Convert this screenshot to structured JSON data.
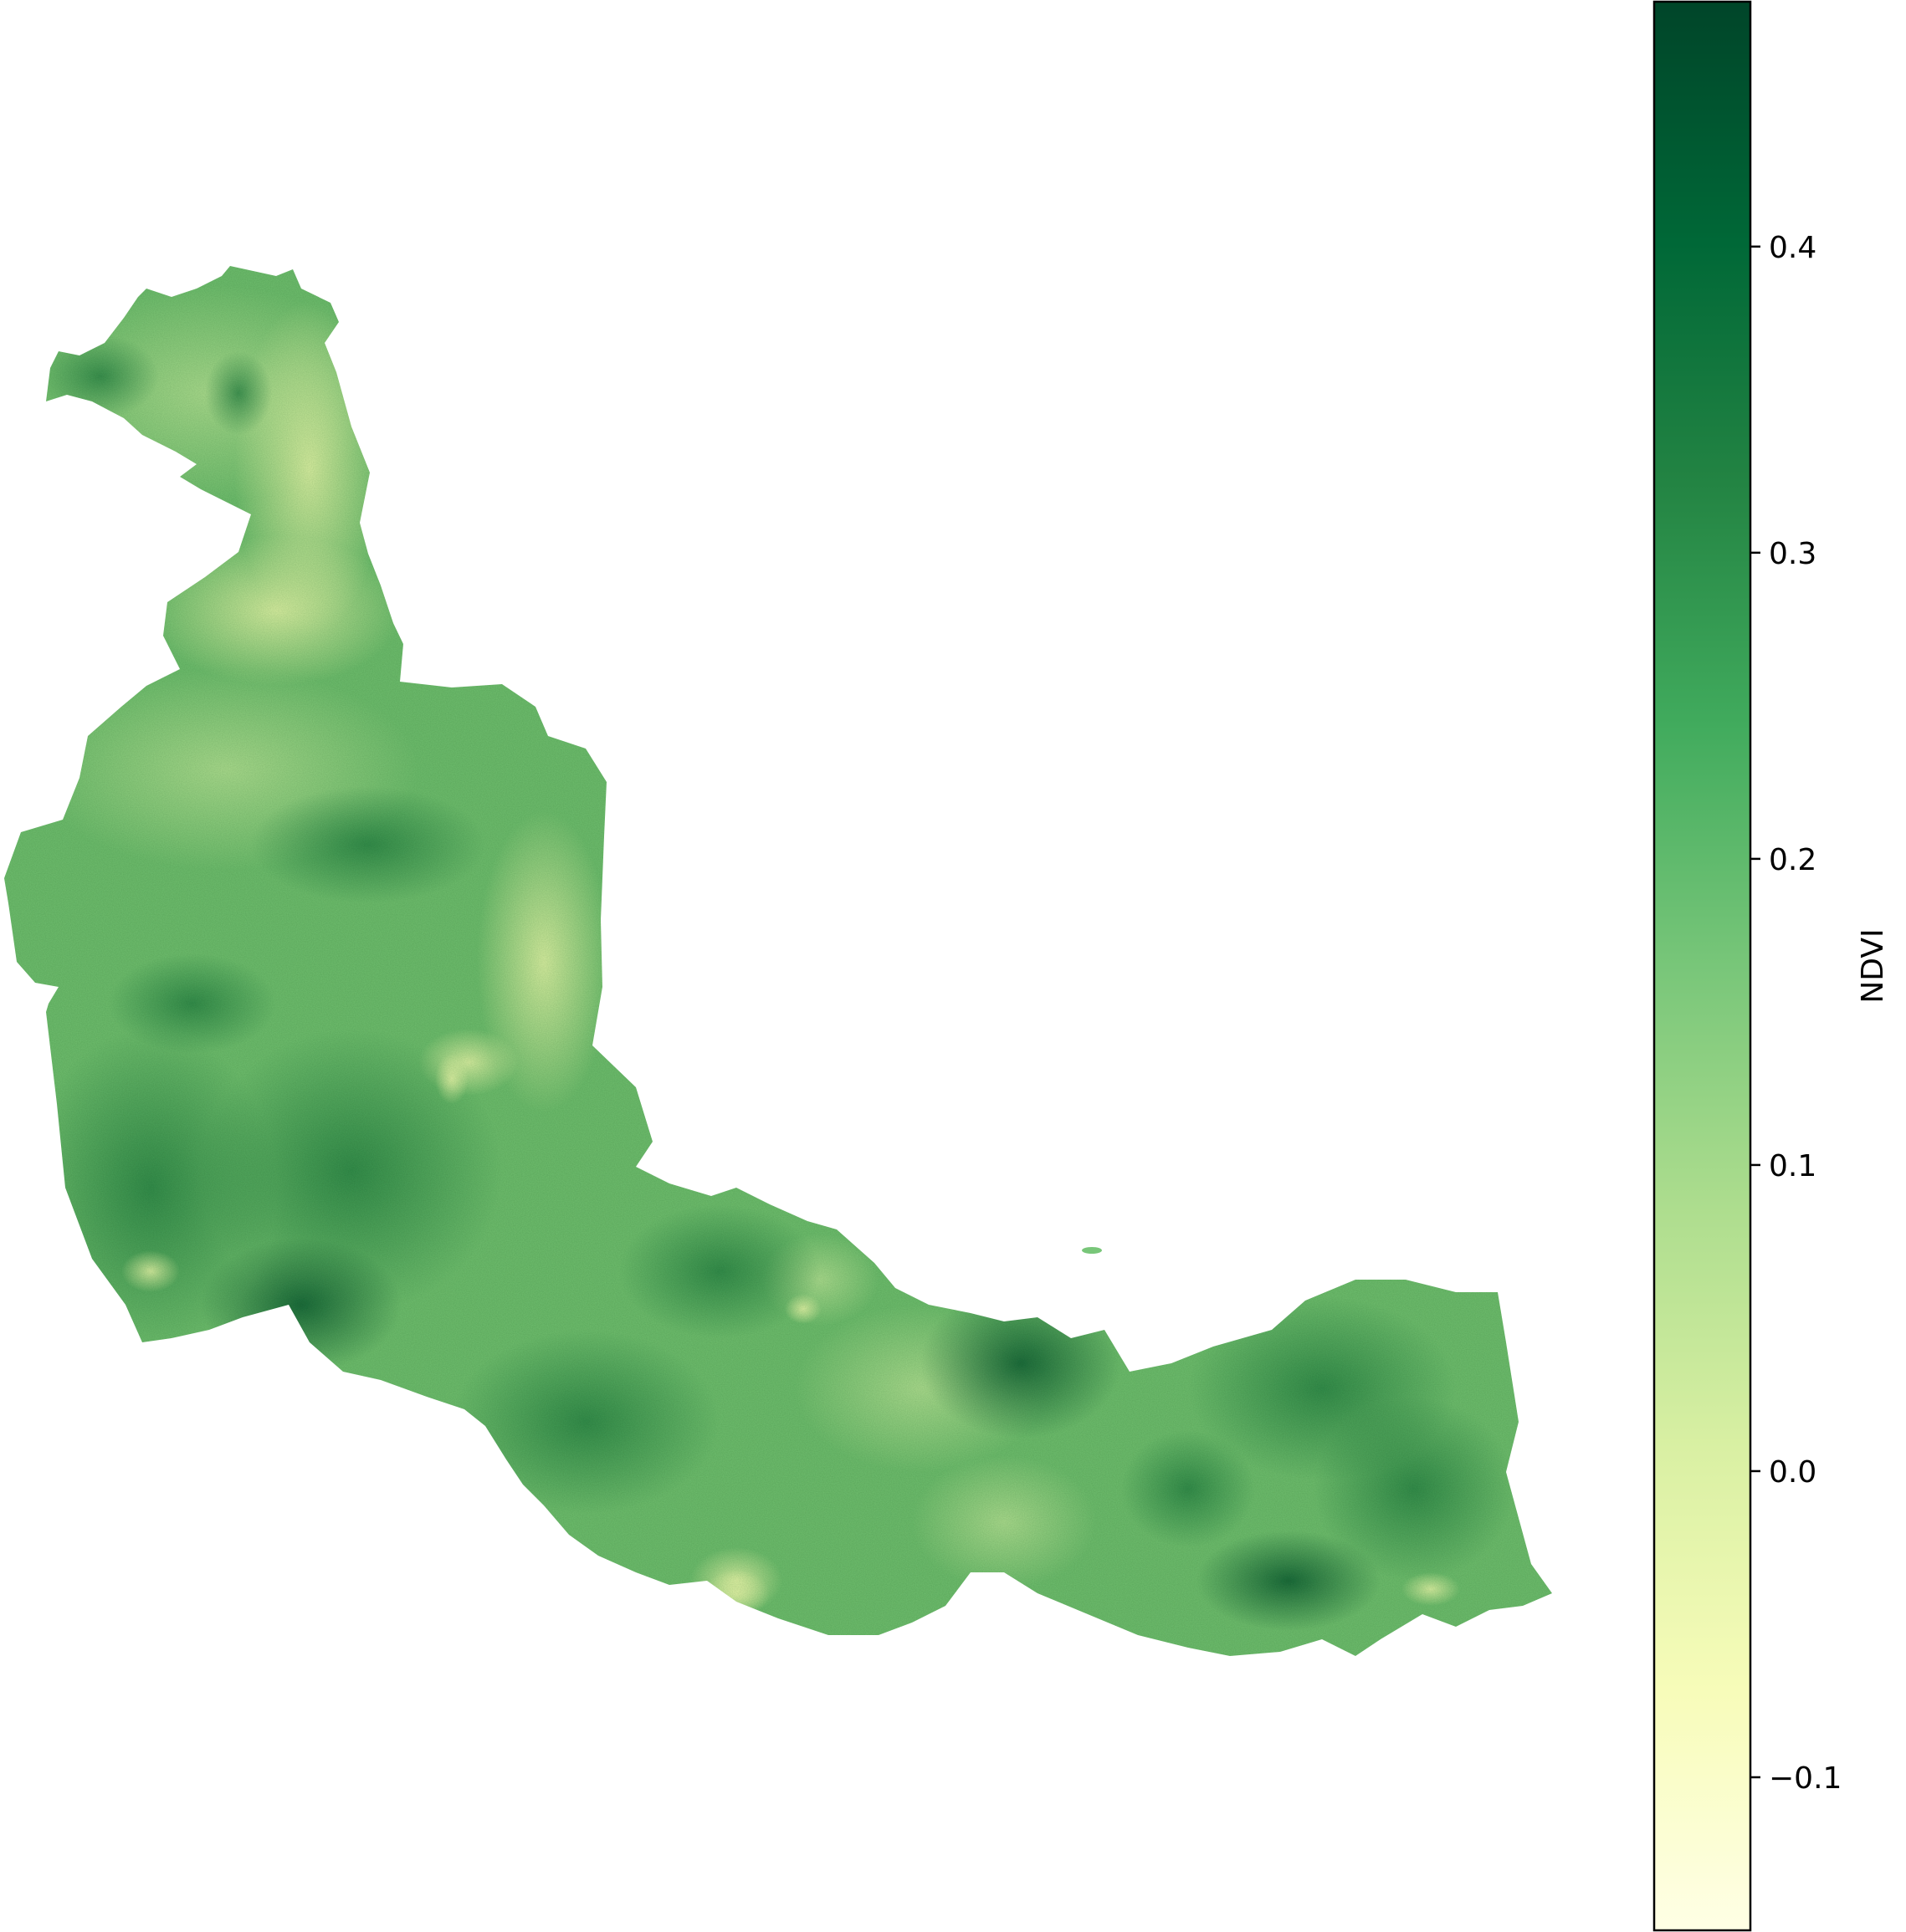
{
  "chart_data": {
    "type": "heatmap",
    "colormap": "YlGn",
    "colorbar": {
      "label": "NDVI",
      "vmin": -0.15,
      "vmax": 0.48,
      "ticks": [
        {
          "value": 0.4,
          "label": "0.4"
        },
        {
          "value": 0.3,
          "label": "0.3"
        },
        {
          "value": 0.2,
          "label": "0.2"
        },
        {
          "value": 0.1,
          "label": "0.1"
        },
        {
          "value": 0.0,
          "label": "0.0"
        },
        {
          "value": -0.1,
          "label": "−0.1"
        }
      ],
      "placement": "right"
    },
    "colors": {
      "very_low": "#ffffe5",
      "low": "#f7fcb9",
      "low_mid": "#d9f0a3",
      "mid": "#addd8e",
      "mid_high": "#78c679",
      "high": "#41ab5d",
      "very_high": "#238443",
      "max": "#006837",
      "deepest": "#004529"
    },
    "grid": false,
    "axes_visible": false
  }
}
